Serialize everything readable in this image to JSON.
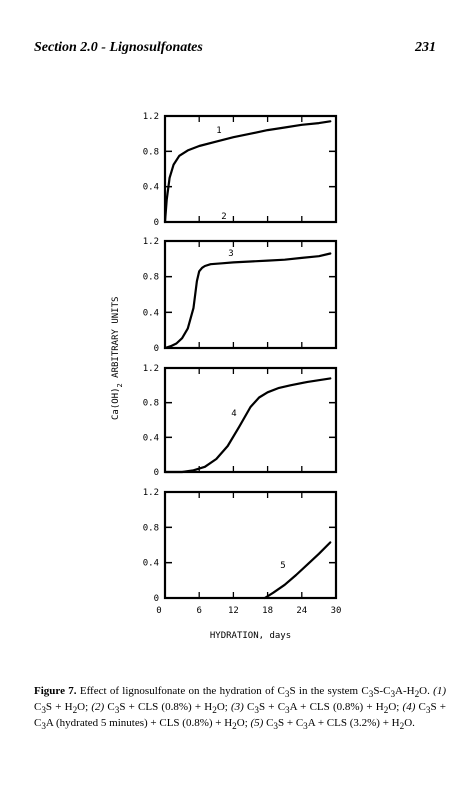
{
  "header": {
    "section_title": "Section 2.0 - Lignosulfonates",
    "page_number": "231"
  },
  "chart_data": {
    "type": "line",
    "title": "",
    "xlabel": "HYDRATION, days",
    "ylabel_main": "Ca(OH)",
    "ylabel_sub": "2",
    "ylabel_rest": "ARBITRARY UNITS",
    "x_ticks": [
      "0",
      "6",
      "12",
      "18",
      "24",
      "30"
    ],
    "y_ticks": [
      "0",
      "0.4",
      "0.8",
      "1.2"
    ],
    "xlim": [
      0,
      30
    ],
    "ylim": [
      0,
      1.2
    ],
    "panels": [
      {
        "label": "1",
        "y_tick_labels": [
          "1.2",
          "0.8",
          "0.4",
          "0"
        ],
        "series": [
          {
            "x": [
              0,
              0.3,
              0.8,
              1.5,
              2.5,
              4,
              6,
              9,
              12,
              15,
              18,
              21,
              24,
              27,
              29
            ],
            "y": [
              0.0,
              0.25,
              0.5,
              0.65,
              0.75,
              0.81,
              0.86,
              0.91,
              0.96,
              1.0,
              1.04,
              1.07,
              1.1,
              1.12,
              1.14
            ]
          }
        ]
      },
      {
        "label": "2",
        "y_tick_labels": [
          "1.2",
          "0.8",
          "0.4",
          "0"
        ],
        "series": []
      },
      {
        "label": "3",
        "y_tick_labels": [
          "0.8",
          "0.4",
          "0"
        ],
        "series": [
          {
            "x": [
              0,
              1,
              2,
              3,
              4,
              5,
              5.6,
              6,
              6.5,
              7,
              8,
              10,
              12,
              15,
              18,
              21,
              24,
              27,
              29
            ],
            "y": [
              0.0,
              0.02,
              0.05,
              0.11,
              0.22,
              0.45,
              0.75,
              0.86,
              0.9,
              0.92,
              0.94,
              0.95,
              0.96,
              0.97,
              0.98,
              0.99,
              1.01,
              1.03,
              1.06
            ]
          }
        ]
      },
      {
        "label": "4",
        "y_tick_labels": [
          "1.2",
          "0.8",
          "0.4",
          "0"
        ],
        "series": [
          {
            "x": [
              0,
              3,
              5,
              7,
              9,
              11,
              13,
              15,
              16.5,
              18,
              20,
              22,
              25,
              28,
              29
            ],
            "y": [
              0.0,
              0.0,
              0.02,
              0.06,
              0.15,
              0.3,
              0.52,
              0.75,
              0.86,
              0.92,
              0.97,
              1.0,
              1.04,
              1.07,
              1.08
            ]
          }
        ]
      },
      {
        "label": "5",
        "y_tick_labels": [
          "1.2",
          "0.8",
          "0.4",
          "0"
        ],
        "series": [
          {
            "x": [
              17.5,
              19,
              21,
              23,
              25,
              27,
              29
            ],
            "y": [
              0.0,
              0.06,
              0.15,
              0.26,
              0.38,
              0.5,
              0.63
            ]
          }
        ]
      }
    ]
  },
  "caption": {
    "label": "Figure 7.",
    "text": "Effect of lignosulfonate on the hydration of C3S in the system C3S-C3A-H2O. (1) C3S + H2O; (2) C3S + CLS (0.8%) + H2O; (3) C3S + C3A + CLS (0.8%) + H2O; (4) C3S + C3A (hydrated 5 minutes) + CLS (0.8%) + H2O; (5) C3S + C3A + CLS (3.2%) + H2O."
  }
}
